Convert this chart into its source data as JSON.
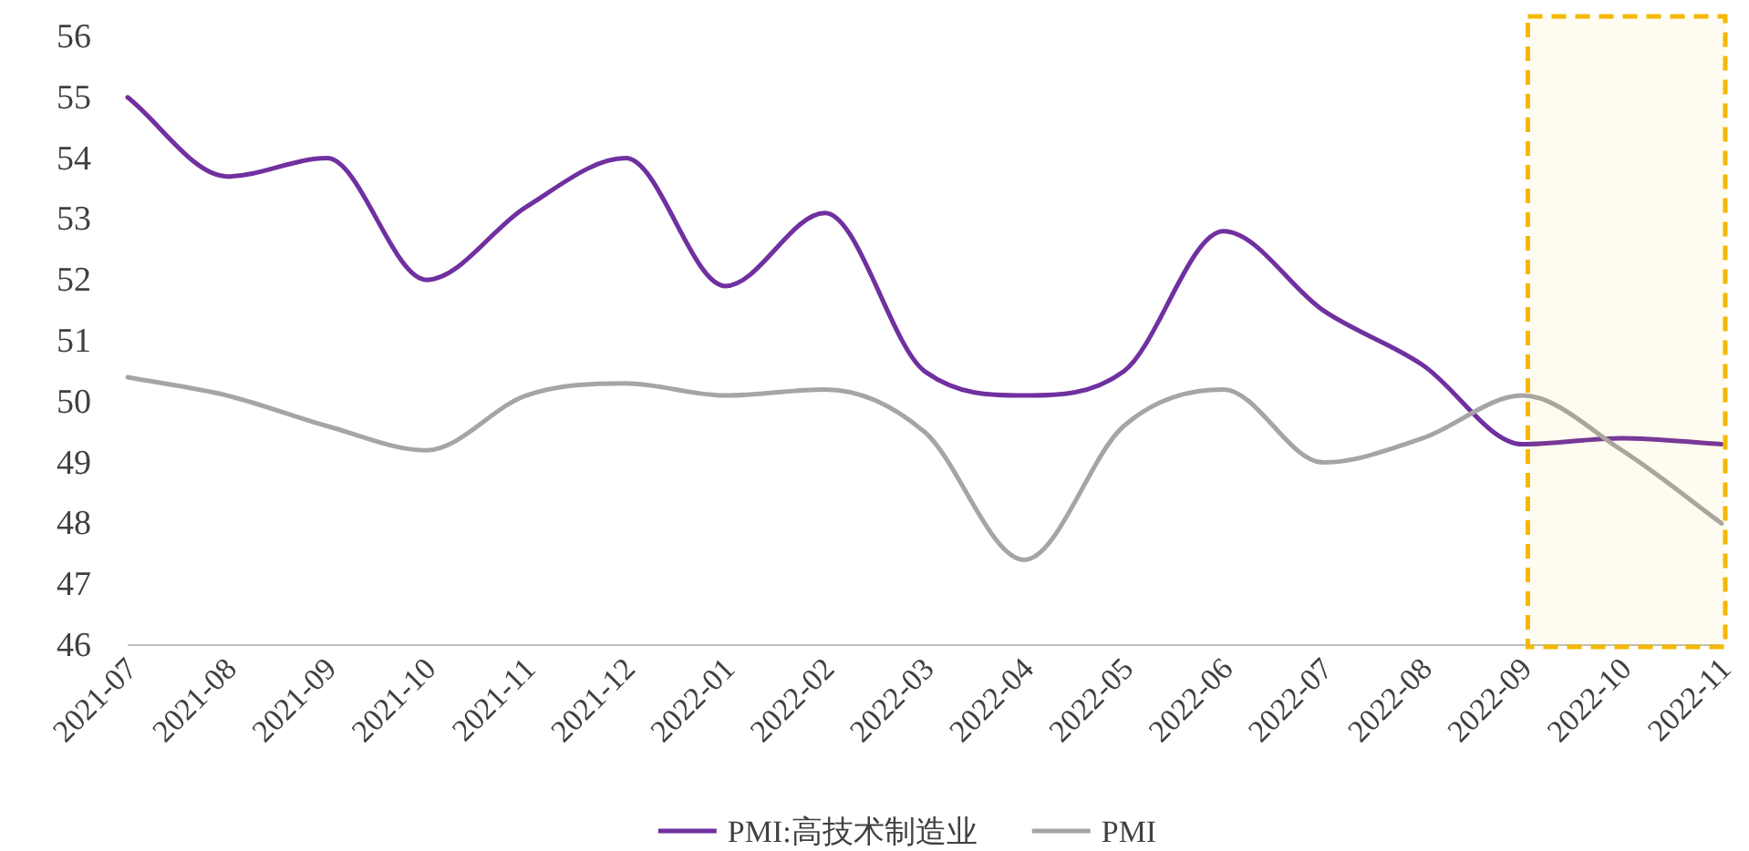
{
  "chart_data": {
    "type": "line",
    "categories": [
      "2021-07",
      "2021-08",
      "2021-09",
      "2021-10",
      "2021-11",
      "2021-12",
      "2022-01",
      "2022-02",
      "2022-03",
      "2022-04",
      "2022-05",
      "2022-06",
      "2022-07",
      "2022-08",
      "2022-09",
      "2022-10",
      "2022-11"
    ],
    "series": [
      {
        "name": "PMI:高技术制造业",
        "color": "#7030a0",
        "values": [
          55.0,
          53.7,
          54.0,
          52.0,
          53.2,
          54.0,
          51.9,
          53.1,
          50.5,
          50.1,
          50.5,
          52.8,
          51.5,
          50.6,
          49.3,
          49.4,
          49.3
        ]
      },
      {
        "name": "PMI",
        "color": "#a5a5a5",
        "values": [
          50.4,
          50.1,
          49.6,
          49.2,
          50.1,
          50.3,
          50.1,
          50.2,
          49.5,
          47.4,
          49.6,
          50.2,
          49.0,
          49.4,
          50.1,
          49.2,
          48.0
        ]
      }
    ],
    "ylim": [
      46,
      56
    ],
    "yticks": [
      46,
      47,
      48,
      49,
      50,
      51,
      52,
      53,
      54,
      55,
      56
    ],
    "bands": [
      {
        "axis": "x",
        "from": "2022-09",
        "to": "2022-11",
        "color": "#f5b800"
      }
    ],
    "grid": false,
    "legend": "bottom",
    "marker": "none",
    "line_style": "solid"
  }
}
